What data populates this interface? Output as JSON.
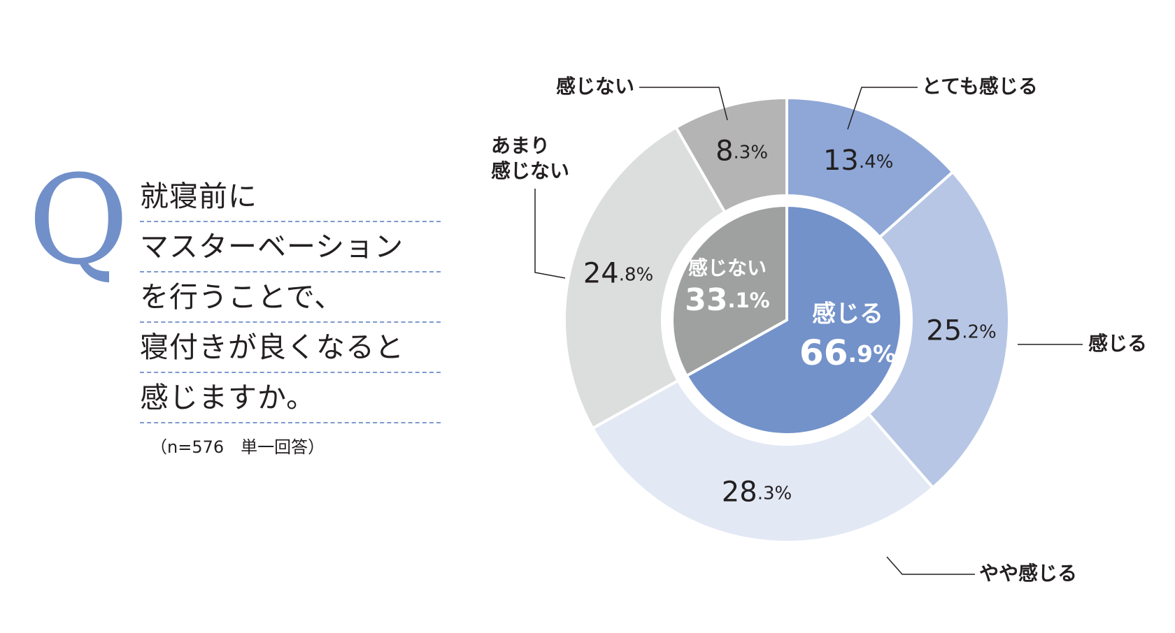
{
  "question": {
    "mark": "Q",
    "lines": [
      "就寝前に",
      "マスターベーション",
      "を行うことで、",
      "寝付きが良くなると",
      "感じますか。"
    ],
    "note": "（n=576　単一回答）"
  },
  "chart_data": {
    "type": "pie",
    "variant": "nested-donut",
    "outer": [
      {
        "label": "とても感じる",
        "value": 13.4,
        "num": "13",
        "dec": ".4%",
        "color": "#8ea7d7"
      },
      {
        "label": "感じる",
        "value": 25.2,
        "num": "25",
        "dec": ".2%",
        "color": "#b7c6e5"
      },
      {
        "label": "やや感じる",
        "value": 28.3,
        "num": "28",
        "dec": ".3%",
        "color": "#e2e8f4"
      },
      {
        "label": "あまり\n感じない",
        "value": 24.8,
        "num": "24",
        "dec": ".8%",
        "color": "#dcdddd"
      },
      {
        "label": "感じない",
        "value": 8.3,
        "num": "8",
        "dec": ".3%",
        "color": "#b4b4b5"
      }
    ],
    "inner": [
      {
        "label": "感じる",
        "value": 66.9,
        "num": "66",
        "dec": ".9%",
        "color": "#7392ca"
      },
      {
        "label": "感じない",
        "value": 33.1,
        "num": "33",
        "dec": ".1%",
        "color": "#9fa0a0"
      }
    ]
  }
}
